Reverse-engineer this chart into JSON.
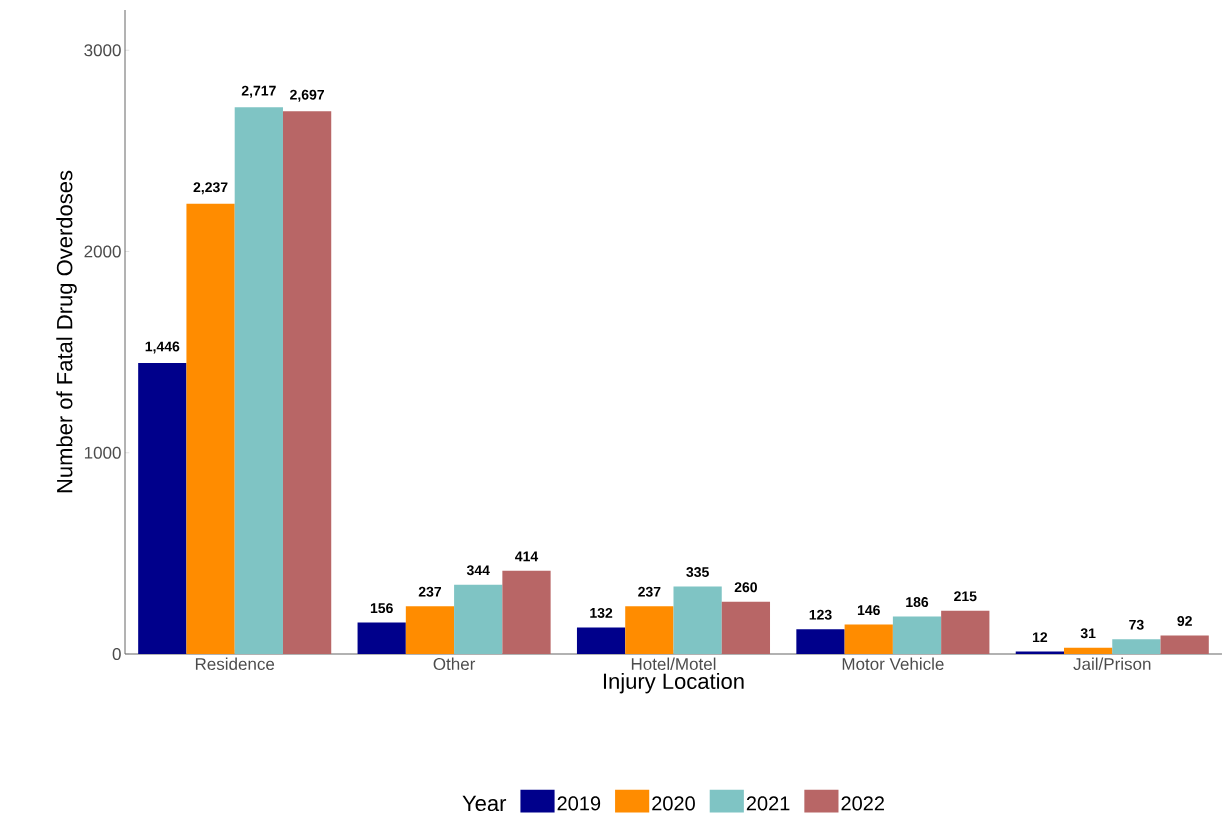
{
  "chart_data": {
    "type": "bar",
    "xlabel": "Injury Location",
    "ylabel": "Number of Fatal Drug Overdoses",
    "legend_title": "Year",
    "categories": [
      "Residence",
      "Other",
      "Hotel/Motel",
      "Motor Vehicle",
      "Jail/Prison"
    ],
    "series": [
      {
        "name": "2019",
        "color": "#00008b",
        "values": [
          1446,
          156,
          132,
          123,
          12
        ],
        "value_labels": [
          "1,446",
          "156",
          "132",
          "123",
          "12"
        ]
      },
      {
        "name": "2020",
        "color": "#ff8c00",
        "values": [
          2237,
          237,
          237,
          146,
          31
        ],
        "value_labels": [
          "2,237",
          "237",
          "237",
          "146",
          "31"
        ]
      },
      {
        "name": "2021",
        "color": "#7fc4c4",
        "values": [
          2717,
          344,
          335,
          186,
          73
        ],
        "value_labels": [
          "2,717",
          "344",
          "335",
          "186",
          "73"
        ]
      },
      {
        "name": "2022",
        "color": "#b86666",
        "values": [
          2697,
          414,
          260,
          215,
          92
        ],
        "value_labels": [
          "2,697",
          "414",
          "260",
          "215",
          "92"
        ]
      }
    ],
    "ylim": [
      0,
      3200
    ],
    "yticks": [
      0,
      1000,
      2000,
      3000
    ],
    "grid": false,
    "legend": "bottom"
  }
}
